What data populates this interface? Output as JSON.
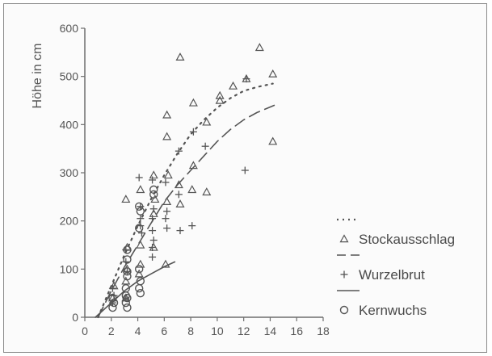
{
  "chart_data": {
    "type": "scatter",
    "title": "",
    "xlabel": "",
    "ylabel": "Höhe in cm",
    "xlim": [
      0,
      18
    ],
    "ylim": [
      0,
      600
    ],
    "xticks": [
      0,
      2,
      4,
      6,
      8,
      10,
      12,
      14,
      16,
      18
    ],
    "yticks": [
      0,
      100,
      200,
      300,
      400,
      500,
      600
    ],
    "grid": false,
    "legend_position": "right",
    "series": [
      {
        "name": "Stockausschlag",
        "marker": "triangle",
        "fit_line": "dotted",
        "points": [
          [
            13.2,
            560
          ],
          [
            7.2,
            540
          ],
          [
            14.2,
            505
          ],
          [
            12.2,
            495
          ],
          [
            11.2,
            480
          ],
          [
            10.2,
            460
          ],
          [
            10.2,
            450
          ],
          [
            8.2,
            445
          ],
          [
            9.2,
            405
          ],
          [
            6.2,
            420
          ],
          [
            6.2,
            375
          ],
          [
            14.2,
            365
          ],
          [
            8.2,
            315
          ],
          [
            5.2,
            295
          ],
          [
            6.3,
            295
          ],
          [
            7.1,
            275
          ],
          [
            8.1,
            265
          ],
          [
            9.2,
            260
          ],
          [
            3.1,
            245
          ],
          [
            5.3,
            245
          ],
          [
            6.2,
            240
          ],
          [
            7.2,
            235
          ],
          [
            4.2,
            265
          ],
          [
            5.2,
            215
          ],
          [
            4.2,
            150
          ],
          [
            5.2,
            145
          ],
          [
            3.2,
            145
          ],
          [
            4.2,
            110
          ],
          [
            6.1,
            110
          ],
          [
            3.2,
            100
          ],
          [
            4.1,
            90
          ],
          [
            3.1,
            75
          ],
          [
            2.2,
            65
          ],
          [
            2.1,
            40
          ],
          [
            3.1,
            40
          ]
        ]
      },
      {
        "name": "Wurzelbrut",
        "marker": "plus",
        "fit_line": "dashed",
        "points": [
          [
            12.2,
            495
          ],
          [
            8.2,
            385
          ],
          [
            9.1,
            355
          ],
          [
            7.1,
            345
          ],
          [
            12.1,
            305
          ],
          [
            4.1,
            290
          ],
          [
            5.1,
            285
          ],
          [
            6.1,
            280
          ],
          [
            7.1,
            255
          ],
          [
            4.2,
            230
          ],
          [
            5.2,
            225
          ],
          [
            6.2,
            220
          ],
          [
            4.2,
            205
          ],
          [
            5.1,
            205
          ],
          [
            6.1,
            205
          ],
          [
            4.2,
            190
          ],
          [
            5.1,
            180
          ],
          [
            6.2,
            185
          ],
          [
            7.2,
            180
          ],
          [
            8.1,
            190
          ],
          [
            4.3,
            175
          ],
          [
            5.2,
            160
          ],
          [
            5.1,
            145
          ],
          [
            5.1,
            125
          ],
          [
            3.1,
            140
          ],
          [
            3.1,
            115
          ],
          [
            3.2,
            95
          ],
          [
            2.1,
            60
          ],
          [
            2.2,
            45
          ],
          [
            3.1,
            40
          ],
          [
            2.1,
            30
          ]
        ]
      },
      {
        "name": "Kernwuchs",
        "marker": "circle",
        "fit_line": "solid",
        "points": [
          [
            5.2,
            265
          ],
          [
            5.2,
            255
          ],
          [
            4.1,
            230
          ],
          [
            4.2,
            220
          ],
          [
            4.1,
            185
          ],
          [
            3.2,
            140
          ],
          [
            3.2,
            120
          ],
          [
            4.1,
            100
          ],
          [
            3.2,
            95
          ],
          [
            3.2,
            85
          ],
          [
            4.2,
            75
          ],
          [
            4.1,
            60
          ],
          [
            3.1,
            60
          ],
          [
            4.2,
            50
          ],
          [
            3.1,
            45
          ],
          [
            3.2,
            40
          ],
          [
            2.1,
            40
          ],
          [
            2.2,
            30
          ],
          [
            3.1,
            30
          ],
          [
            3.2,
            20
          ],
          [
            2.1,
            20
          ]
        ]
      }
    ],
    "fit_lines": {
      "dotted": [
        [
          1,
          0
        ],
        [
          2,
          65
        ],
        [
          3,
          130
        ],
        [
          4,
          190
        ],
        [
          5,
          245
        ],
        [
          6,
          295
        ],
        [
          7,
          340
        ],
        [
          8,
          380
        ],
        [
          9,
          410
        ],
        [
          10,
          435
        ],
        [
          11,
          455
        ],
        [
          12,
          470
        ],
        [
          13,
          478
        ],
        [
          14.2,
          485
        ]
      ],
      "dashed": [
        [
          1,
          0
        ],
        [
          2,
          55
        ],
        [
          3,
          105
        ],
        [
          4,
          150
        ],
        [
          5,
          195
        ],
        [
          6,
          240
        ],
        [
          7,
          275
        ],
        [
          8,
          305
        ],
        [
          9,
          335
        ],
        [
          10,
          365
        ],
        [
          11,
          390
        ],
        [
          12,
          410
        ],
        [
          13,
          425
        ],
        [
          14.3,
          440
        ]
      ],
      "solid": [
        [
          0.8,
          0
        ],
        [
          2,
          30
        ],
        [
          3,
          55
        ],
        [
          4,
          75
        ],
        [
          5,
          90
        ],
        [
          6,
          105
        ],
        [
          6.8,
          115
        ]
      ]
    }
  }
}
